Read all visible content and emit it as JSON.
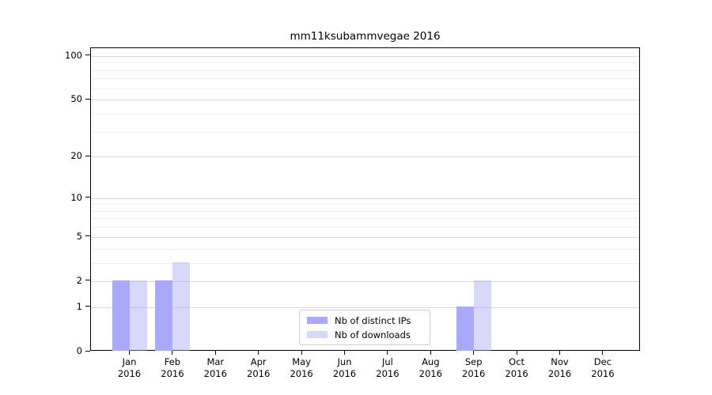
{
  "chart_data": {
    "type": "bar",
    "title": "mm11ksubammvegae 2016",
    "categories": [
      "Jan",
      "Feb",
      "Mar",
      "Apr",
      "May",
      "Jun",
      "Jul",
      "Aug",
      "Sep",
      "Oct",
      "Nov",
      "Dec"
    ],
    "category_year": "2016",
    "series": [
      {
        "name": "Nb of distinct IPs",
        "color": "#a9a9fa",
        "alpha": 1,
        "values": [
          2,
          2,
          0,
          0,
          0,
          0,
          0,
          0,
          1,
          0,
          0,
          0
        ]
      },
      {
        "name": "Nb of downloads",
        "color": "#a9a9fa",
        "alpha": 0.45,
        "values": [
          2,
          3,
          0,
          0,
          0,
          0,
          0,
          0,
          2,
          0,
          0,
          0
        ]
      }
    ],
    "yscale": "log1p",
    "ylim": [
      0,
      113
    ],
    "yticks": [
      100,
      50,
      20,
      10,
      5,
      2,
      1,
      0
    ],
    "yticks_minor": [
      3,
      4,
      6,
      7,
      8,
      9,
      30,
      40,
      60,
      70,
      80,
      90
    ],
    "grid": {
      "major_color": "#d9d9d9",
      "minor_color": "#f0f0f0"
    },
    "legend_position": "lower-center",
    "xlabel": "",
    "ylabel": ""
  }
}
